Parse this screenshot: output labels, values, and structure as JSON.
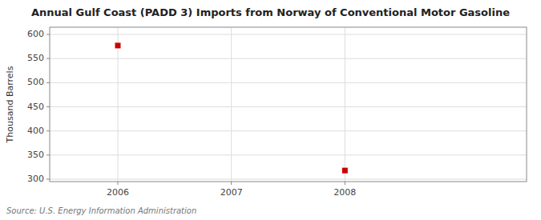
{
  "chart_data": {
    "type": "scatter",
    "title": "Annual Gulf Coast (PADD 3) Imports from Norway of Conventional Motor Gasoline",
    "y_label": "Thousand Barrels",
    "annotations": [
      "Source: U.S. Energy Information Administration"
    ],
    "x": [
      2006,
      2008
    ],
    "values": [
      577,
      318
    ],
    "color": "#cc0000",
    "marker": "square",
    "xlim": [
      2005.4,
      2009.6
    ],
    "ylim": [
      295,
      615
    ],
    "xticks": [
      2006,
      2007,
      2008
    ],
    "yticks": [
      300,
      350,
      400,
      450,
      500,
      550,
      600
    ],
    "grid": true
  }
}
